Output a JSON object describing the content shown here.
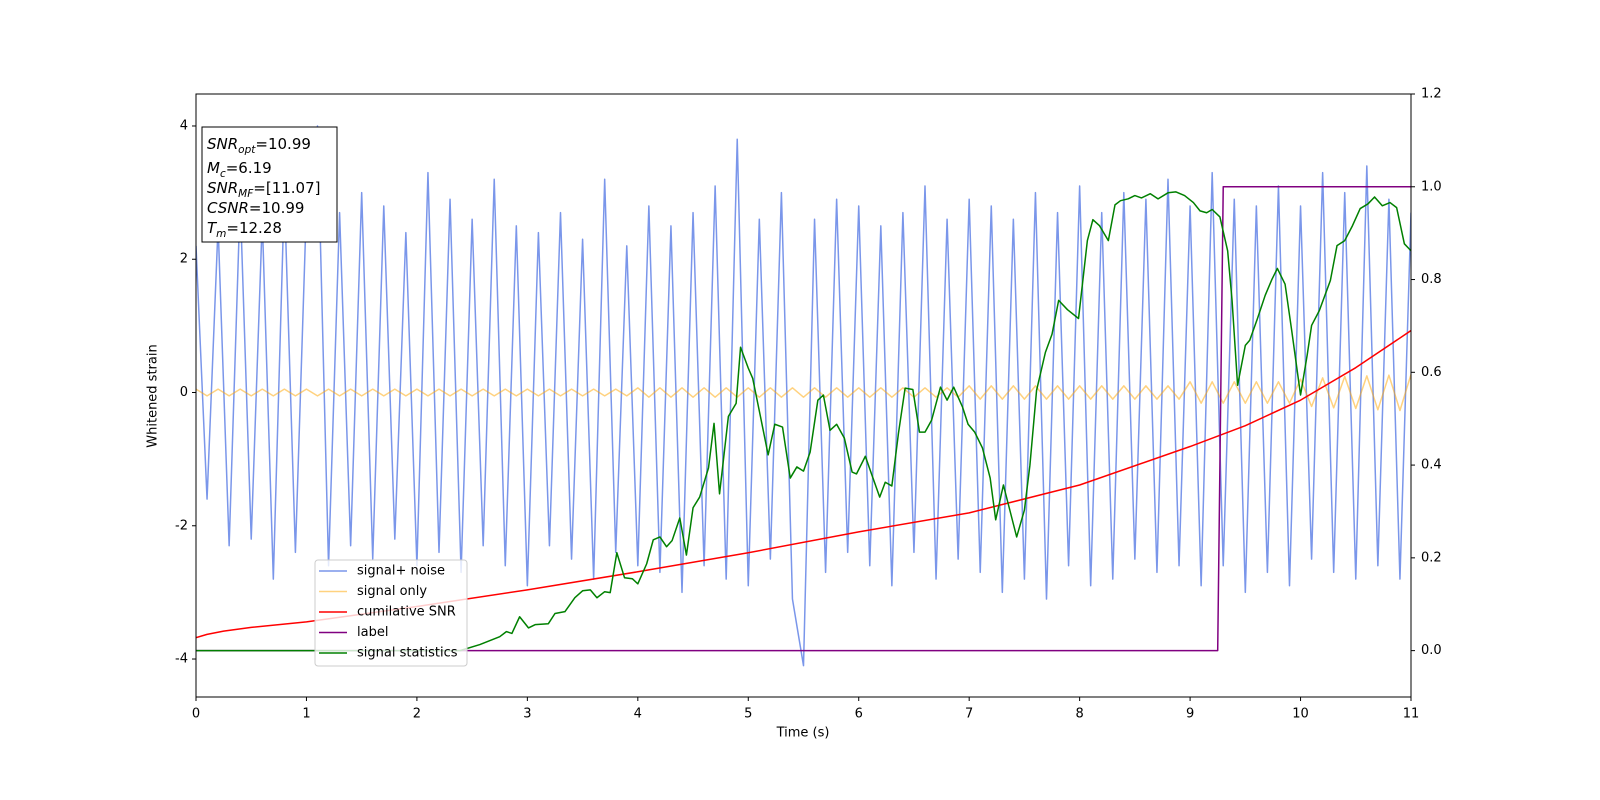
{
  "chart_data": {
    "type": "line",
    "xlabel": "Time (s)",
    "ylabel": "Whitened strain",
    "xlim": [
      0,
      11
    ],
    "xticks": [
      0,
      1,
      2,
      3,
      4,
      5,
      6,
      7,
      8,
      9,
      10,
      11
    ],
    "ylim": [
      -4.57,
      4.48
    ],
    "yticks": [
      -4,
      -2,
      0,
      2,
      4
    ],
    "y2lim": [
      -0.1,
      1.2
    ],
    "y2ticks": [
      {
        "value": 0,
        "label": "0.0"
      },
      0.2,
      0.4,
      0.6,
      0.8,
      {
        "value": 1,
        "label": "1.0"
      },
      1.2
    ],
    "legend": "lower left",
    "x": [
      0,
      0.1,
      0.2,
      0.3,
      0.4,
      0.5,
      0.6,
      0.7,
      0.8,
      0.9,
      1,
      1.1,
      1.2,
      1.3,
      1.4,
      1.5,
      1.6,
      1.7,
      1.8,
      1.9,
      2,
      2.1,
      2.2,
      2.3,
      2.4,
      2.5,
      2.6,
      2.7,
      2.8,
      2.9,
      3,
      3.1,
      3.2,
      3.3,
      3.4,
      3.5,
      3.6,
      3.7,
      3.8,
      3.9,
      4,
      4.1,
      4.2,
      4.3,
      4.4,
      4.5,
      4.6,
      4.7,
      4.8,
      4.9,
      5,
      5.1,
      5.2,
      5.3,
      5.4,
      5.5,
      5.6,
      5.7,
      5.8,
      5.9,
      6,
      6.1,
      6.2,
      6.3,
      6.4,
      6.5,
      6.6,
      6.7,
      6.8,
      6.9,
      7,
      7.1,
      7.2,
      7.3,
      7.4,
      7.5,
      7.6,
      7.7,
      7.8,
      7.9,
      8,
      8.1,
      8.2,
      8.3,
      8.4,
      8.5,
      8.6,
      8.7,
      8.8,
      8.9,
      9,
      9.1,
      9.2,
      9.3,
      9.4,
      9.5,
      9.6,
      9.7,
      9.8,
      9.9,
      10,
      10.1,
      10.2,
      10.3,
      10.4,
      10.5,
      10.6,
      10.7,
      10.8,
      10.9,
      11
    ],
    "series": [
      {
        "name": "signal+ noise",
        "color": "#4169e1",
        "alpha": 0.7,
        "values": [
          2.2,
          -1.6,
          2.5,
          -2.3,
          2.9,
          -2.2,
          2.6,
          -2.8,
          3.0,
          -2.4,
          2.8,
          4.0,
          -2.6,
          2.7,
          -2.3,
          3.0,
          -2.5,
          2.8,
          -2.2,
          2.4,
          -2.6,
          3.3,
          -2.4,
          2.9,
          -2.7,
          2.6,
          -2.3,
          3.2,
          -2.6,
          2.5,
          -2.9,
          2.4,
          -2.3,
          2.7,
          -2.5,
          2.3,
          -2.8,
          3.2,
          -2.4,
          2.2,
          -2.6,
          2.8,
          -2.7,
          2.5,
          -3.0,
          2.7,
          -2.6,
          3.1,
          -2.8,
          3.8,
          -2.9,
          2.6,
          -2.5,
          3.0,
          -3.1,
          -4.1,
          2.6,
          -2.7,
          2.9,
          -2.4,
          2.8,
          -2.6,
          2.5,
          -2.9,
          2.7,
          -2.4,
          3.1,
          -2.8,
          2.6,
          -2.5,
          2.9,
          -2.7,
          2.8,
          -3.0,
          2.6,
          -2.8,
          3.0,
          -3.1,
          2.7,
          -2.6,
          3.1,
          -2.9,
          2.7,
          -2.8,
          3.0,
          -2.5,
          2.9,
          -2.7,
          3.2,
          -2.6,
          2.8,
          -2.9,
          3.3,
          -2.6,
          2.9,
          -3.0,
          2.8,
          -2.7,
          3.1,
          -2.9,
          2.8,
          -2.5,
          3.3,
          -2.7,
          3.0,
          -2.8,
          3.4,
          -2.6,
          2.9,
          -2.8,
          2.7
        ]
      },
      {
        "name": "signal only",
        "color": "#ffa500",
        "alpha": 0.5,
        "values": [
          0.05,
          -0.05,
          0.05,
          -0.05,
          0.05,
          -0.05,
          0.05,
          -0.05,
          0.05,
          -0.05,
          0.05,
          -0.05,
          0.05,
          -0.05,
          0.05,
          -0.05,
          0.05,
          -0.05,
          0.05,
          -0.05,
          0.05,
          -0.05,
          0.05,
          -0.05,
          0.05,
          -0.05,
          0.05,
          -0.05,
          0.05,
          -0.05,
          0.05,
          -0.05,
          0.05,
          -0.05,
          0.05,
          -0.05,
          0.05,
          -0.05,
          0.05,
          -0.05,
          0.07,
          -0.07,
          0.07,
          -0.07,
          0.07,
          -0.07,
          0.07,
          -0.07,
          0.07,
          -0.07,
          0.07,
          -0.07,
          0.07,
          -0.07,
          0.07,
          -0.07,
          0.07,
          -0.07,
          0.07,
          -0.07,
          0.07,
          -0.07,
          0.07,
          -0.07,
          0.07,
          -0.07,
          0.07,
          -0.07,
          0.07,
          -0.07,
          0.1,
          -0.1,
          0.1,
          -0.1,
          0.1,
          -0.1,
          0.1,
          -0.1,
          0.1,
          -0.1,
          0.1,
          -0.1,
          0.1,
          -0.1,
          0.1,
          -0.1,
          0.1,
          -0.1,
          0.1,
          -0.1,
          0.16,
          -0.16,
          0.16,
          -0.16,
          0.16,
          -0.16,
          0.16,
          -0.16,
          0.16,
          -0.16,
          0.2,
          -0.21,
          0.22,
          -0.23,
          0.24,
          -0.24,
          0.25,
          -0.26,
          0.26,
          -0.27,
          0.27
        ]
      },
      {
        "name": "cumilative SNR",
        "color": "#ff0000",
        "axis": "y2",
        "x": [
          0,
          0.1,
          0.25,
          0.5,
          1,
          2,
          3,
          4,
          5,
          6,
          7,
          8,
          9,
          9.5,
          10,
          10.5,
          11
        ],
        "values": [
          0.028,
          0.035,
          0.042,
          0.05,
          0.062,
          0.095,
          0.131,
          0.17,
          0.211,
          0.256,
          0.297,
          0.357,
          0.44,
          0.485,
          0.54,
          0.61,
          0.69
        ]
      },
      {
        "name": "label",
        "color": "#800080",
        "axis": "y2",
        "x": [
          0,
          9.25,
          9.3,
          11
        ],
        "values": [
          0,
          0,
          1,
          1
        ]
      },
      {
        "name": "signal statistics",
        "color": "#008000",
        "axis": "y2",
        "x": [
          0,
          2.39,
          2.57,
          2.75,
          2.81,
          2.86,
          2.93,
          3.01,
          3.07,
          3.19,
          3.25,
          3.34,
          3.43,
          3.5,
          3.57,
          3.63,
          3.7,
          3.75,
          3.81,
          3.88,
          3.95,
          4,
          4.08,
          4.14,
          4.2,
          4.26,
          4.31,
          4.38,
          4.44,
          4.5,
          4.56,
          4.64,
          4.69,
          4.74,
          4.82,
          4.89,
          4.93,
          5,
          5.04,
          5.11,
          5.18,
          5.24,
          5.31,
          5.38,
          5.44,
          5.5,
          5.56,
          5.63,
          5.68,
          5.74,
          5.8,
          5.87,
          5.94,
          5.98,
          6.06,
          6.12,
          6.19,
          6.24,
          6.3,
          6.36,
          6.42,
          6.49,
          6.55,
          6.6,
          6.66,
          6.74,
          6.8,
          6.86,
          6.94,
          6.99,
          7.05,
          7.12,
          7.19,
          7.24,
          7.31,
          7.37,
          7.43,
          7.5,
          7.55,
          7.61,
          7.69,
          7.75,
          7.81,
          7.89,
          7.99,
          8.07,
          8.12,
          8.18,
          8.26,
          8.32,
          8.37,
          8.44,
          8.5,
          8.56,
          8.64,
          8.71,
          8.8,
          8.87,
          8.95,
          9.03,
          9.09,
          9.15,
          9.2,
          9.27,
          9.34,
          9.38,
          9.43,
          9.5,
          9.54,
          9.61,
          9.68,
          9.74,
          9.79,
          9.86,
          9.92,
          10,
          10.06,
          10.1,
          10.17,
          10.27,
          10.33,
          10.4,
          10.47,
          10.54,
          10.61,
          10.67,
          10.74,
          10.81,
          10.87,
          10.94,
          11
        ],
        "values": [
          0,
          0,
          0.013,
          0.03,
          0.041,
          0.037,
          0.073,
          0.049,
          0.056,
          0.058,
          0.08,
          0.084,
          0.114,
          0.129,
          0.131,
          0.114,
          0.127,
          0.125,
          0.211,
          0.157,
          0.155,
          0.144,
          0.187,
          0.239,
          0.245,
          0.224,
          0.237,
          0.286,
          0.206,
          0.308,
          0.331,
          0.394,
          0.49,
          0.338,
          0.505,
          0.533,
          0.654,
          0.609,
          0.587,
          0.505,
          0.422,
          0.488,
          0.482,
          0.372,
          0.396,
          0.387,
          0.428,
          0.54,
          0.551,
          0.475,
          0.488,
          0.458,
          0.385,
          0.381,
          0.419,
          0.378,
          0.331,
          0.363,
          0.355,
          0.469,
          0.566,
          0.563,
          0.471,
          0.471,
          0.497,
          0.568,
          0.54,
          0.568,
          0.525,
          0.488,
          0.471,
          0.437,
          0.372,
          0.282,
          0.357,
          0.301,
          0.245,
          0.303,
          0.4,
          0.561,
          0.643,
          0.682,
          0.755,
          0.735,
          0.716,
          0.884,
          0.929,
          0.916,
          0.884,
          0.961,
          0.97,
          0.974,
          0.981,
          0.976,
          0.985,
          0.974,
          0.987,
          0.989,
          0.981,
          0.966,
          0.948,
          0.944,
          0.951,
          0.935,
          0.862,
          0.755,
          0.572,
          0.658,
          0.669,
          0.716,
          0.766,
          0.8,
          0.824,
          0.79,
          0.69,
          0.551,
          0.637,
          0.701,
          0.733,
          0.798,
          0.873,
          0.884,
          0.916,
          0.953,
          0.963,
          0.978,
          0.959,
          0.966,
          0.955,
          0.877,
          0.862
        ]
      }
    ],
    "annotations": [
      {
        "main": "SNR",
        "sub": "opt",
        "value": "=10.99"
      },
      {
        "main": "M",
        "sub": "c",
        "value": "=6.19"
      },
      {
        "main": "SNR",
        "sub": "MF",
        "value": "=[11.07]"
      },
      {
        "main": "CSNR",
        "value": "=10.99"
      },
      {
        "main": "T",
        "sub": "m",
        "value": "=12.28"
      }
    ]
  }
}
